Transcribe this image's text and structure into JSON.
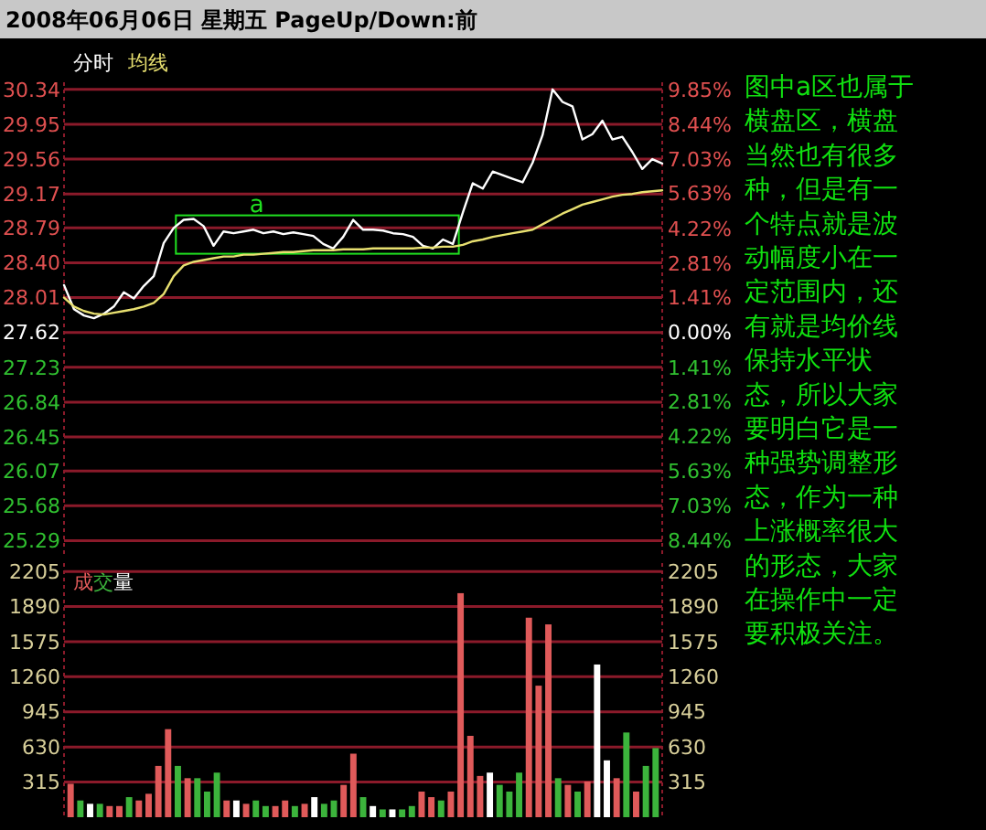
{
  "chart_data": [
    {
      "type": "line",
      "title": "2008年06月06日 星期五 PageUp/Down:前",
      "categories": [
        null,
        null,
        null,
        null,
        null,
        null,
        null,
        null,
        null,
        null,
        null,
        null,
        null,
        null,
        null,
        null,
        null,
        null,
        null,
        null,
        null,
        null,
        null,
        null,
        null,
        null,
        null,
        null,
        null,
        null,
        null,
        null,
        null,
        null,
        null,
        null,
        null,
        null,
        null,
        null,
        null,
        null,
        null,
        null,
        null,
        null,
        null,
        null,
        null,
        null,
        null,
        null,
        null,
        null,
        null,
        null,
        null,
        null,
        null,
        null,
        null
      ],
      "series": [
        {
          "name": "分时",
          "color": "#ffffff",
          "values": [
            28.15,
            27.88,
            27.81,
            27.78,
            27.83,
            27.91,
            28.07,
            28.0,
            28.14,
            28.25,
            28.62,
            28.79,
            28.88,
            28.89,
            28.81,
            28.59,
            28.75,
            28.73,
            28.75,
            28.77,
            28.73,
            28.75,
            28.72,
            28.74,
            28.72,
            28.7,
            28.61,
            28.56,
            28.69,
            28.88,
            28.77,
            28.77,
            28.76,
            28.73,
            28.72,
            28.69,
            28.59,
            28.56,
            28.66,
            28.61,
            28.96,
            29.29,
            29.23,
            29.42,
            29.38,
            29.34,
            29.3,
            29.52,
            29.83,
            30.34,
            30.2,
            30.15,
            29.78,
            29.84,
            29.99,
            29.78,
            29.81,
            29.64,
            29.45,
            29.56,
            29.51
          ]
        },
        {
          "name": "均线",
          "color": "#e8e070",
          "values": [
            28.01,
            27.91,
            27.86,
            27.83,
            27.82,
            27.84,
            27.86,
            27.88,
            27.91,
            27.95,
            28.05,
            28.25,
            28.37,
            28.41,
            28.43,
            28.45,
            28.47,
            28.47,
            28.49,
            28.49,
            28.5,
            28.51,
            28.52,
            28.52,
            28.53,
            28.54,
            28.54,
            28.54,
            28.55,
            28.55,
            28.55,
            28.56,
            28.56,
            28.56,
            28.56,
            28.56,
            28.57,
            28.57,
            28.58,
            28.58,
            28.6,
            28.64,
            28.66,
            28.69,
            28.71,
            28.73,
            28.75,
            28.77,
            28.83,
            28.89,
            28.95,
            29.0,
            29.05,
            29.08,
            29.11,
            29.14,
            29.16,
            29.17,
            29.19,
            29.2,
            29.21
          ]
        }
      ],
      "ylim": [
        25.1,
        30.42
      ],
      "yticks": [
        25.29,
        25.68,
        26.07,
        26.45,
        26.84,
        27.23,
        27.62,
        28.01,
        {
          "value": 28.4,
          "label": "28.40"
        },
        28.79,
        29.17,
        29.56,
        29.95,
        30.34
      ],
      "y2lim": [
        -9.12,
        10.14
      ],
      "y2ticks": [
        {
          "value": -8.44,
          "label": "8.44%"
        },
        {
          "value": -7.03,
          "label": "7.03%"
        },
        {
          "value": -5.63,
          "label": "5.63%"
        },
        {
          "value": -4.22,
          "label": "4.22%"
        },
        {
          "value": -2.81,
          "label": "2.81%"
        },
        {
          "value": -1.41,
          "label": "1.41%"
        },
        {
          "value": 0,
          "label": "0.00%"
        },
        {
          "value": 1.41,
          "label": "1.41%"
        },
        {
          "value": 2.81,
          "label": "2.81%"
        },
        {
          "value": 4.22,
          "label": "4.22%"
        },
        {
          "value": 5.63,
          "label": "5.63%"
        },
        {
          "value": 7.03,
          "label": "7.03%"
        },
        {
          "value": 8.44,
          "label": "8.44%"
        },
        {
          "value": 9.85,
          "label": "9.85%"
        }
      ],
      "grid": "y",
      "legend": "top left",
      "tick_labels": "y",
      "annotations": [
        "a",
        "图中a区也属于横盘区，横盘当然也有很多种，但是有一个特点就是波动幅度小在一定范围内，还有就是均价线保持水平状态，所以大家要明白它是一种强势调整形态，作为一种上涨概率很大的形态，大家在操作中一定要积极关注。"
      ]
    },
    {
      "type": "bar",
      "title": "成交量",
      "categories": [
        null,
        null,
        null,
        null,
        null,
        null,
        null,
        null,
        null,
        null,
        null,
        null,
        null,
        null,
        null,
        null,
        null,
        null,
        null,
        null,
        null,
        null,
        null,
        null,
        null,
        null,
        null,
        null,
        null,
        null,
        null,
        null,
        null,
        null,
        null,
        null,
        null,
        null,
        null,
        null,
        null,
        null,
        null,
        null,
        null,
        null,
        null,
        null,
        null,
        null,
        null,
        null,
        null,
        null,
        null,
        null,
        null,
        null,
        null,
        null,
        null
      ],
      "values": [
        300,
        150,
        120,
        120,
        100,
        100,
        180,
        150,
        210,
        460,
        790,
        460,
        350,
        350,
        230,
        400,
        150,
        150,
        120,
        150,
        100,
        100,
        150,
        100,
        120,
        180,
        120,
        150,
        290,
        570,
        180,
        100,
        70,
        70,
        70,
        100,
        230,
        180,
        150,
        230,
        2010,
        730,
        370,
        400,
        290,
        230,
        400,
        1790,
        1180,
        1730,
        350,
        290,
        230,
        320,
        1370,
        510,
        350,
        760,
        230,
        460,
        620
      ],
      "colors": [
        "#e05a5a",
        "#3cb43c",
        "#ffffff",
        "#3cb43c",
        "#e05a5a",
        "#e05a5a",
        "#3cb43c",
        "#e05a5a",
        "#e05a5a",
        "#e05a5a",
        "#e05a5a",
        "#3cb43c",
        "#e05a5a",
        "#3cb43c",
        "#3cb43c",
        "#3cb43c",
        "#e05a5a",
        "#ffffff",
        "#e05a5a",
        "#3cb43c",
        "#3cb43c",
        "#e05a5a",
        "#e05a5a",
        "#3cb43c",
        "#e05a5a",
        "#ffffff",
        "#3cb43c",
        "#3cb43c",
        "#e05a5a",
        "#e05a5a",
        "#3cb43c",
        "#ffffff",
        "#3cb43c",
        "#ffffff",
        "#3cb43c",
        "#3cb43c",
        "#e05a5a",
        "#e05a5a",
        "#3cb43c",
        "#e05a5a",
        "#e05a5a",
        "#e05a5a",
        "#e05a5a",
        "#ffffff",
        "#3cb43c",
        "#3cb43c",
        "#3cb43c",
        "#e05a5a",
        "#e05a5a",
        "#e05a5a",
        "#3cb43c",
        "#e05a5a",
        "#3cb43c",
        "#e05a5a",
        "#ffffff",
        "#ffffff",
        "#e05a5a",
        "#3cb43c",
        "#e05a5a",
        "#3cb43c",
        "#3cb43c"
      ],
      "ylim": [
        0,
        2280
      ],
      "yticks": [
        315,
        630,
        945,
        1260,
        1575,
        1890,
        2205
      ],
      "y2lim": [
        0,
        2280
      ],
      "y2ticks": [
        315,
        630,
        945,
        1260,
        1575,
        1890,
        2205
      ],
      "grid": "y",
      "tick_labels": "y"
    }
  ]
}
